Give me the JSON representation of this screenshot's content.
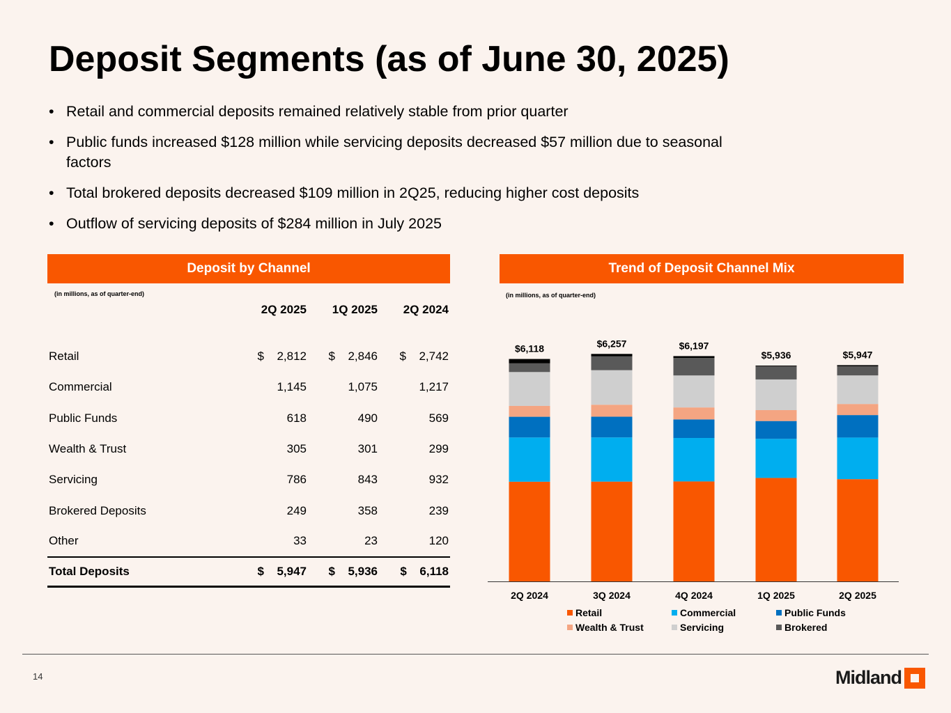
{
  "title": "Deposit Segments (as of June 30, 2025)",
  "bullets": [
    "Retail and commercial deposits remained relatively stable from prior quarter",
    "Public funds increased $128 million while servicing deposits decreased $57 million due to seasonal factors",
    "Total brokered deposits decreased $109 million in 2Q25, reducing higher cost deposits",
    "Outflow of servicing deposits of $284 million in July 2025"
  ],
  "table_panel": {
    "header": "Deposit by Channel",
    "note": "(in millions, as of quarter-end)",
    "columns": [
      "2Q 2025",
      "1Q 2025",
      "2Q 2024"
    ],
    "rows": [
      {
        "label": "Retail",
        "cur": "$",
        "values": [
          "2,812",
          "2,846",
          "2,742"
        ]
      },
      {
        "label": "Commercial",
        "cur": "",
        "values": [
          "1,145",
          "1,075",
          "1,217"
        ]
      },
      {
        "label": "Public Funds",
        "cur": "",
        "values": [
          "618",
          "490",
          "569"
        ]
      },
      {
        "label": "Wealth & Trust",
        "cur": "",
        "values": [
          "305",
          "301",
          "299"
        ]
      },
      {
        "label": "Servicing",
        "cur": "",
        "values": [
          "786",
          "843",
          "932"
        ]
      },
      {
        "label": "Brokered Deposits",
        "cur": "",
        "values": [
          "249",
          "358",
          "239"
        ]
      },
      {
        "label": "Other",
        "cur": "",
        "values": [
          "33",
          "23",
          "120"
        ]
      }
    ],
    "total": {
      "label": "Total Deposits",
      "cur": "$",
      "values": [
        "5,947",
        "5,936",
        "6,118"
      ]
    }
  },
  "chart_panel": {
    "header": "Trend of Deposit Channel Mix",
    "note": "(in millions, as of quarter-end)"
  },
  "chart_data": {
    "type": "bar",
    "stacked": true,
    "categories": [
      "2Q 2024",
      "3Q 2024",
      "4Q 2024",
      "1Q 2025",
      "2Q 2025"
    ],
    "totals": [
      "$6,118",
      "$6,257",
      "$6,197",
      "$5,936",
      "$5,947"
    ],
    "series": [
      {
        "name": "Retail",
        "color": "#F95700",
        "values": [
          2742,
          2745,
          2750,
          2846,
          2812
        ]
      },
      {
        "name": "Commercial",
        "color": "#00AEEF",
        "values": [
          1217,
          1215,
          1195,
          1075,
          1145
        ]
      },
      {
        "name": "Public Funds",
        "color": "#0070C0",
        "values": [
          569,
          570,
          510,
          490,
          618
        ]
      },
      {
        "name": "Wealth & Trust",
        "color": "#F4A582",
        "values": [
          299,
          330,
          330,
          301,
          305
        ]
      },
      {
        "name": "Servicing",
        "color": "#CFCFCF",
        "values": [
          932,
          950,
          880,
          843,
          786
        ]
      },
      {
        "name": "Brokered",
        "color": "#595959",
        "values": [
          239,
          380,
          480,
          358,
          249
        ]
      },
      {
        "name": "Other",
        "color": "#000000",
        "values": [
          120,
          67,
          52,
          23,
          33
        ],
        "in_legend": false
      }
    ],
    "ylim": [
      0,
      6300
    ],
    "legend": "bottom"
  },
  "page_number": "14",
  "logo": "Midland"
}
